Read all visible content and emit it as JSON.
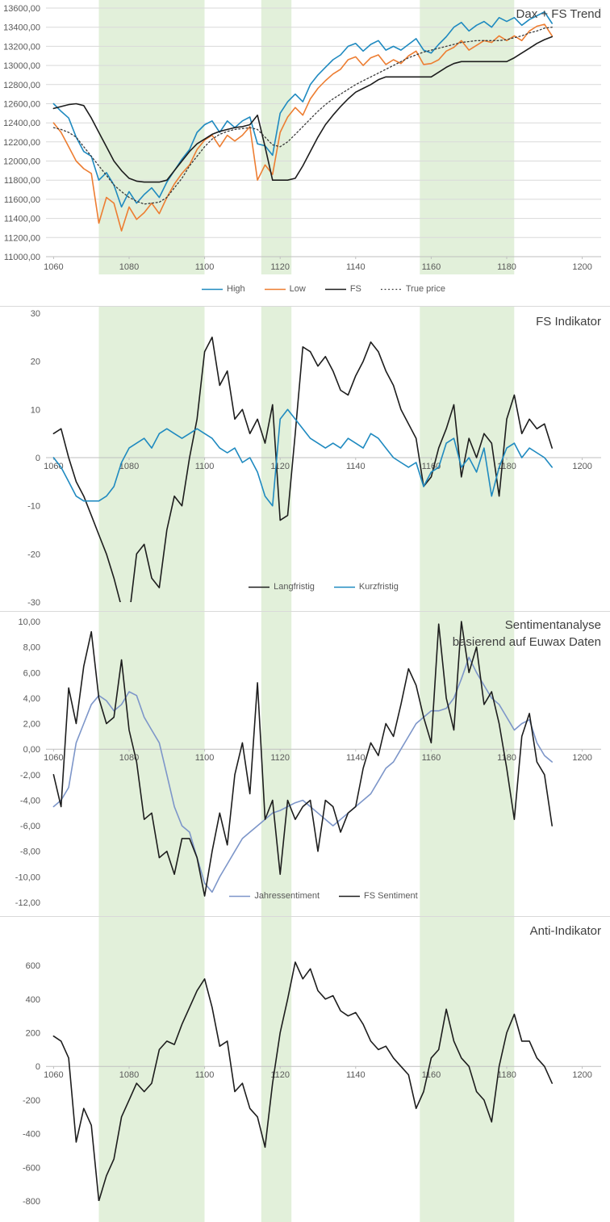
{
  "colors": {
    "band": "#e2f0da",
    "grid": "#d9d9d9",
    "axis": "#bfbfbf",
    "tick_text": "#595959",
    "title_text": "#404040",
    "high": "#1f8ac0",
    "low": "#ed7d31",
    "fs_black": "#1d1d1d",
    "true_price": "#3a3a3a",
    "jahressentiment": "#7d96c9"
  },
  "x_tick_labels": [
    "1060",
    "1080",
    "1100",
    "1120",
    "1140",
    "1160",
    "1180",
    "1200"
  ],
  "x_values": [
    1060,
    1062,
    1064,
    1066,
    1068,
    1070,
    1072,
    1074,
    1076,
    1078,
    1080,
    1082,
    1084,
    1086,
    1088,
    1090,
    1092,
    1094,
    1096,
    1098,
    1100,
    1102,
    1104,
    1106,
    1108,
    1110,
    1112,
    1114,
    1116,
    1118,
    1120,
    1122,
    1124,
    1126,
    1128,
    1130,
    1132,
    1134,
    1136,
    1138,
    1140,
    1142,
    1144,
    1146,
    1148,
    1150,
    1152,
    1154,
    1156,
    1158,
    1160,
    1162,
    1164,
    1166,
    1168,
    1170,
    1172,
    1174,
    1176,
    1178,
    1180,
    1182,
    1184,
    1186,
    1188,
    1190,
    1192
  ],
  "highlight_bands": [
    [
      1072,
      1100
    ],
    [
      1115,
      1123
    ],
    [
      1157,
      1182
    ]
  ],
  "chart_data": [
    {
      "type": "line",
      "title": "Dax + FS Trend",
      "title_lines": [
        "Dax + FS Trend"
      ],
      "xlim": [
        1058,
        1205
      ],
      "ylim": [
        11000,
        13600
      ],
      "grid": true,
      "x_label_pos": "bottom",
      "legend_position": "bottom",
      "y_ticks": [
        "13600,00",
        "13400,00",
        "13200,00",
        "13000,00",
        "12800,00",
        "12600,00",
        "12400,00",
        "12200,00",
        "12000,00",
        "11800,00",
        "11600,00",
        "11400,00",
        "11200,00",
        "11000,00"
      ],
      "series": [
        {
          "name": "High",
          "color_key": "high",
          "width": 1.6,
          "values": [
            12600,
            12520,
            12450,
            12250,
            12100,
            12050,
            11800,
            11880,
            11750,
            11520,
            11680,
            11560,
            11650,
            11720,
            11620,
            11780,
            11900,
            12020,
            12120,
            12300,
            12380,
            12420,
            12300,
            12420,
            12350,
            12420,
            12460,
            12180,
            12160,
            12060,
            12500,
            12620,
            12700,
            12620,
            12800,
            12900,
            12980,
            13060,
            13110,
            13200,
            13230,
            13150,
            13220,
            13260,
            13160,
            13200,
            13160,
            13220,
            13280,
            13160,
            13130,
            13220,
            13300,
            13400,
            13450,
            13360,
            13420,
            13460,
            13400,
            13500,
            13460,
            13500,
            13420,
            13480,
            13520,
            13560,
            13440
          ]
        },
        {
          "name": "Low",
          "color_key": "low",
          "width": 1.6,
          "values": [
            12400,
            12300,
            12150,
            12000,
            11920,
            11870,
            11350,
            11620,
            11560,
            11270,
            11520,
            11390,
            11460,
            11560,
            11450,
            11620,
            11760,
            11870,
            11960,
            12120,
            12220,
            12270,
            12150,
            12270,
            12210,
            12270,
            12360,
            11800,
            11960,
            11860,
            12300,
            12460,
            12560,
            12480,
            12650,
            12760,
            12840,
            12910,
            12960,
            13060,
            13090,
            13000,
            13080,
            13110,
            13010,
            13060,
            13020,
            13100,
            13150,
            13010,
            13020,
            13060,
            13150,
            13190,
            13260,
            13160,
            13210,
            13260,
            13240,
            13310,
            13260,
            13310,
            13260,
            13360,
            13410,
            13430,
            13310
          ]
        },
        {
          "name": "FS",
          "color_key": "fs_black",
          "width": 1.6,
          "values": [
            12550,
            12570,
            12590,
            12600,
            12580,
            12450,
            12300,
            12150,
            12000,
            11900,
            11820,
            11790,
            11780,
            11780,
            11780,
            11800,
            11900,
            12000,
            12100,
            12180,
            12230,
            12280,
            12310,
            12330,
            12350,
            12360,
            12380,
            12480,
            12150,
            11800,
            11800,
            11800,
            11820,
            11950,
            12100,
            12250,
            12380,
            12480,
            12570,
            12650,
            12720,
            12760,
            12800,
            12850,
            12880,
            12880,
            12880,
            12880,
            12880,
            12880,
            12880,
            12930,
            12980,
            13020,
            13040,
            13040,
            13040,
            13040,
            13040,
            13040,
            13040,
            13080,
            13130,
            13180,
            13230,
            13270,
            13300
          ]
        },
        {
          "name": "True price",
          "color_key": "true_price",
          "width": 1.3,
          "dash": "1.8 2.8",
          "values": [
            12350,
            12330,
            12300,
            12250,
            12150,
            12050,
            11950,
            11850,
            11750,
            11680,
            11620,
            11580,
            11550,
            11560,
            11570,
            11620,
            11720,
            11820,
            11950,
            12050,
            12150,
            12230,
            12280,
            12310,
            12330,
            12340,
            12350,
            12330,
            12250,
            12170,
            12150,
            12200,
            12280,
            12360,
            12440,
            12520,
            12590,
            12650,
            12700,
            12750,
            12800,
            12840,
            12880,
            12920,
            12960,
            13000,
            13040,
            13080,
            13110,
            13140,
            13160,
            13180,
            13200,
            13220,
            13240,
            13250,
            13260,
            13260,
            13260,
            13260,
            13270,
            13290,
            13310,
            13340,
            13360,
            13390,
            13400
          ]
        }
      ]
    },
    {
      "type": "line",
      "title": "FS Indikator",
      "title_lines": [
        "FS Indikator"
      ],
      "xlim": [
        1058,
        1205
      ],
      "ylim": [
        -30,
        30
      ],
      "grid": false,
      "x_label_pos": "zero",
      "legend_position": "bottom-inside",
      "y_ticks": [
        "30",
        "20",
        "10",
        "0",
        "-10",
        "-20",
        "-30"
      ],
      "series": [
        {
          "name": "Langfristig",
          "color_key": "fs_black",
          "width": 1.6,
          "values": [
            5,
            6,
            0,
            -5,
            -8,
            -12,
            -16,
            -20,
            -25,
            -31,
            -33,
            -20,
            -18,
            -25,
            -27,
            -15,
            -8,
            -10,
            0,
            8,
            22,
            25,
            15,
            18,
            8,
            10,
            5,
            8,
            3,
            11,
            -13,
            -12,
            5,
            23,
            22,
            19,
            21,
            18,
            14,
            13,
            17,
            20,
            24,
            22,
            18,
            15,
            10,
            7,
            4,
            -6,
            -4,
            2,
            6,
            11,
            -4,
            4,
            0,
            5,
            3,
            -8,
            8,
            13,
            5,
            8,
            6,
            7,
            2
          ]
        },
        {
          "name": "Kurzfristig",
          "color_key": "high",
          "width": 1.6,
          "values": [
            0,
            -2,
            -5,
            -8,
            -9,
            -9,
            -9,
            -8,
            -6,
            -1,
            2,
            3,
            4,
            2,
            5,
            6,
            5,
            4,
            5,
            6,
            5,
            4,
            2,
            1,
            2,
            -1,
            0,
            -3,
            -8,
            -10,
            8,
            10,
            8,
            6,
            4,
            3,
            2,
            3,
            2,
            4,
            3,
            2,
            5,
            4,
            2,
            0,
            -1,
            -2,
            -1,
            -6,
            -3,
            -2,
            3,
            4,
            -2,
            0,
            -3,
            2,
            -8,
            -2,
            2,
            3,
            0,
            2,
            1,
            0,
            -2
          ]
        }
      ]
    },
    {
      "type": "line",
      "title": "Sentimentanalyse basierend auf Euwax Daten",
      "title_lines": [
        "Sentimentanalyse",
        "basierend auf Euwax Daten"
      ],
      "xlim": [
        1058,
        1205
      ],
      "ylim": [
        -12,
        10
      ],
      "grid": false,
      "x_label_pos": "zero",
      "legend_position": "bottom-inside",
      "y_ticks": [
        "10,00",
        "8,00",
        "6,00",
        "4,00",
        "2,00",
        "0,00",
        "-2,00",
        "-4,00",
        "-6,00",
        "-8,00",
        "-10,00",
        "-12,00"
      ],
      "series": [
        {
          "name": "Jahressentiment",
          "color_key": "jahressentiment",
          "width": 1.6,
          "values": [
            -4.5,
            -4,
            -3,
            0.5,
            2,
            3.5,
            4.2,
            3.8,
            3,
            3.5,
            4.5,
            4.2,
            2.5,
            1.5,
            0.5,
            -2,
            -4.5,
            -6,
            -6.5,
            -8.5,
            -10.5,
            -11.2,
            -10,
            -9,
            -8,
            -7,
            -6.5,
            -6,
            -5.5,
            -5,
            -4.8,
            -4.5,
            -4.2,
            -4,
            -4.5,
            -5,
            -5.5,
            -6,
            -5.5,
            -5,
            -4.5,
            -4,
            -3.5,
            -2.5,
            -1.5,
            -1,
            0,
            1,
            2,
            2.5,
            3,
            3,
            3.2,
            4,
            5.5,
            7.2,
            6,
            5,
            4,
            3.5,
            2.5,
            1.5,
            2,
            2.3,
            0.5,
            -0.5,
            -1
          ]
        },
        {
          "name": "FS Sentiment",
          "color_key": "fs_black",
          "width": 1.6,
          "values": [
            -2,
            -4.5,
            4.8,
            2,
            6.5,
            9.2,
            4,
            2,
            2.5,
            7,
            1.5,
            -1,
            -5.5,
            -5,
            -8.5,
            -8,
            -9.8,
            -7,
            -7,
            -8.5,
            -11.5,
            -8,
            -5,
            -7.5,
            -2,
            0.5,
            -3.5,
            5.2,
            -5.5,
            -4,
            -9.8,
            -4,
            -5.5,
            -4.5,
            -4,
            -8,
            -4,
            -4.5,
            -6.5,
            -5,
            -4.5,
            -1.5,
            0.5,
            -0.5,
            2,
            1,
            3.5,
            6.3,
            5,
            2.5,
            0.5,
            9.8,
            4,
            1.5,
            10,
            6,
            8,
            3.5,
            4.5,
            2,
            -1.5,
            -5.5,
            1,
            2.8,
            -1,
            -2,
            -6
          ]
        }
      ]
    },
    {
      "type": "line",
      "title": "Anti-Indikator",
      "title_lines": [
        "Anti-Indikator"
      ],
      "xlim": [
        1058,
        1205
      ],
      "ylim": [
        -800,
        850
      ],
      "grid": false,
      "x_label_pos": "zero",
      "legend_position": "none",
      "y_ticks": [
        "600",
        "400",
        "200",
        "0",
        "-200",
        "-400",
        "-600",
        "-800"
      ],
      "series": [
        {
          "name": "Anti-Indikator",
          "color_key": "fs_black",
          "width": 1.6,
          "values": [
            180,
            150,
            50,
            -450,
            -250,
            -350,
            -800,
            -650,
            -550,
            -300,
            -200,
            -100,
            -150,
            -100,
            100,
            150,
            130,
            250,
            350,
            450,
            520,
            350,
            120,
            150,
            -150,
            -100,
            -250,
            -300,
            -480,
            -100,
            200,
            400,
            620,
            520,
            580,
            450,
            400,
            420,
            330,
            300,
            320,
            250,
            150,
            100,
            120,
            50,
            0,
            -50,
            -250,
            -150,
            50,
            100,
            340,
            150,
            50,
            0,
            -150,
            -200,
            -330,
            0,
            200,
            310,
            150,
            150,
            50,
            0,
            -100
          ]
        }
      ]
    }
  ]
}
